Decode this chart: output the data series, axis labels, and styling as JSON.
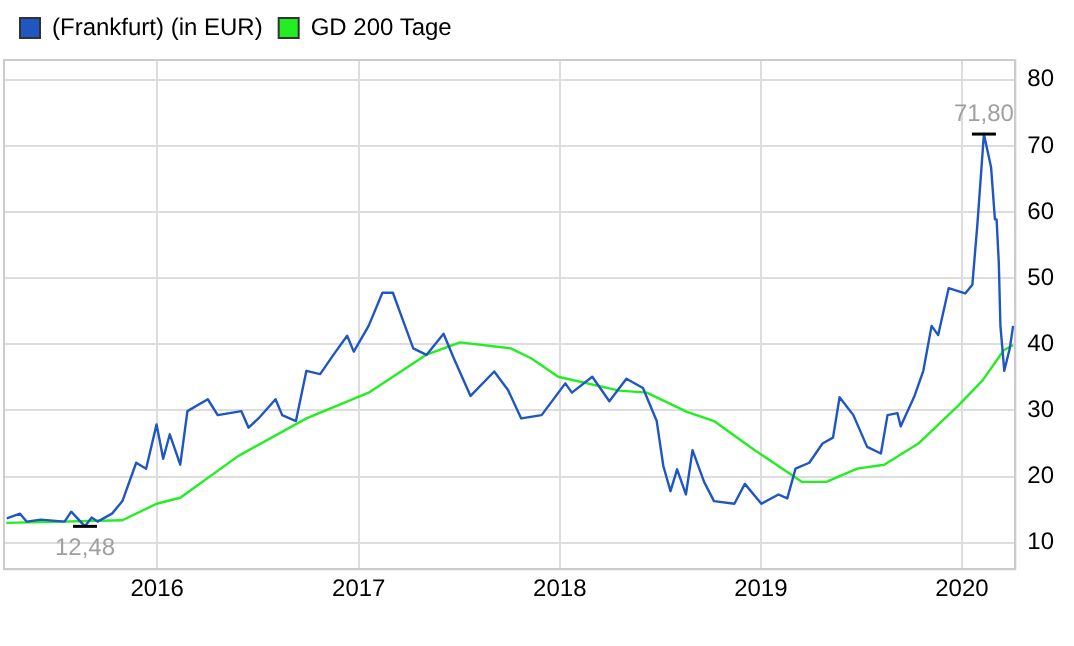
{
  "chart_data": {
    "type": "line",
    "series": [
      {
        "name": "(Frankfurt) (in EUR)",
        "color": "#1f56c2",
        "x": [
          "2015-04-03",
          "2015-04-27",
          "2015-05-09",
          "2015-06-04",
          "2015-07-17",
          "2015-07-29",
          "2015-08-23",
          "2015-09-04",
          "2015-09-15",
          "2015-10-11",
          "2015-10-30",
          "2015-11-24",
          "2015-12-12",
          "2015-12-31",
          "2016-01-12",
          "2016-01-24",
          "2016-02-12",
          "2016-02-25",
          "2016-04-02",
          "2016-04-20",
          "2016-06-02",
          "2016-06-15",
          "2016-07-03",
          "2016-08-03",
          "2016-08-15",
          "2016-09-09",
          "2016-09-28",
          "2016-10-23",
          "2016-11-16",
          "2016-12-11",
          "2016-12-23",
          "2017-01-19",
          "2017-02-13",
          "2017-03-04",
          "2017-03-22",
          "2017-04-10",
          "2017-05-04",
          "2017-06-04",
          "2017-06-22",
          "2017-07-23",
          "2017-09-04",
          "2017-09-29",
          "2017-10-23",
          "2017-11-29",
          "2018-01-11",
          "2018-01-23",
          "2018-03-01",
          "2018-04-01",
          "2018-05-02",
          "2018-06-01",
          "2018-06-26",
          "2018-07-08",
          "2018-07-21",
          "2018-08-02",
          "2018-08-18",
          "2018-08-30",
          "2018-09-20",
          "2018-10-08",
          "2018-11-14",
          "2018-12-03",
          "2019-01-02",
          "2019-02-02",
          "2019-02-18",
          "2019-03-05",
          "2019-03-30",
          "2019-04-23",
          "2019-05-12",
          "2019-05-24",
          "2019-06-18",
          "2019-07-13",
          "2019-08-07",
          "2019-08-19",
          "2019-09-06",
          "2019-09-12",
          "2019-10-07",
          "2019-10-23",
          "2019-11-07",
          "2019-11-19",
          "2019-12-08",
          "2020-01-07",
          "2020-01-20",
          "2020-01-29",
          "2020-02-10",
          "2020-02-23",
          "2020-03-01",
          "2020-03-04",
          "2020-03-08",
          "2020-03-11",
          "2020-03-18",
          "2020-03-28",
          "2020-04-03"
        ],
        "values": [
          13.7,
          14.4,
          13.2,
          13.5,
          13.2,
          14.7,
          12.48,
          13.8,
          13.2,
          14.4,
          16.3,
          22.1,
          21.2,
          27.9,
          22.7,
          26.4,
          21.8,
          29.9,
          31.7,
          29.3,
          29.9,
          27.4,
          28.8,
          31.7,
          29.3,
          28.4,
          36,
          35.5,
          38.4,
          41.3,
          38.9,
          42.8,
          47.8,
          47.8,
          43.7,
          39.4,
          38.4,
          41.6,
          38,
          32.2,
          35.9,
          33.1,
          28.8,
          29.3,
          34.1,
          32.7,
          35.1,
          31.4,
          34.8,
          33.4,
          28.4,
          21.6,
          17.8,
          21.1,
          17.3,
          24,
          19.2,
          16.3,
          15.9,
          18.9,
          15.9,
          17.3,
          16.7,
          21.2,
          22.1,
          25,
          25.9,
          32,
          29.3,
          24.5,
          23.5,
          29.3,
          29.6,
          27.6,
          32.2,
          36,
          42.8,
          41.4,
          48.5,
          47.7,
          49,
          58,
          71.8,
          66.8,
          58.9,
          58.9,
          52.4,
          42.8,
          36,
          39.4,
          42.8
        ]
      },
      {
        "name": "GD 200 Tage",
        "color": "#22ee22",
        "x": [
          "2015-04-02",
          "2015-10-30",
          "2015-12-31",
          "2016-02-12",
          "2016-05-27",
          "2016-09-28",
          "2017-01-19",
          "2017-05-03",
          "2017-07-04",
          "2017-10-04",
          "2017-11-10",
          "2017-12-29",
          "2018-04-19",
          "2018-06-08",
          "2018-08-20",
          "2018-10-08",
          "2018-12-21",
          "2019-03-17",
          "2019-04-30",
          "2019-06-25",
          "2019-08-13",
          "2019-10-14",
          "2019-12-25",
          "2020-02-08",
          "2020-03-17",
          "2020-04-03"
        ],
        "values": [
          13,
          13.4,
          15.9,
          16.8,
          23.1,
          28.8,
          32.7,
          38.4,
          40.3,
          39.4,
          37.9,
          35.1,
          33,
          32.7,
          29.8,
          28.4,
          24,
          19.2,
          19.2,
          21.2,
          21.8,
          25,
          30.7,
          34.6,
          39.1,
          39.9
        ]
      }
    ],
    "xlim": [
      "2015-03-29",
      "2020-04-07"
    ],
    "xticks": [
      "2016",
      "2017",
      "2018",
      "2019",
      "2020"
    ],
    "ylim": [
      6,
      83
    ],
    "yticks": [
      10,
      20,
      30,
      40,
      50,
      60,
      70,
      80
    ],
    "annotations": [
      {
        "text": "71,80",
        "x": "2020-02-10",
        "y": 71.8
      },
      {
        "text": "12,48",
        "x": "2015-08-23",
        "y": 12.48
      }
    ],
    "grid": true,
    "legend": "top left",
    "marker": "none"
  }
}
